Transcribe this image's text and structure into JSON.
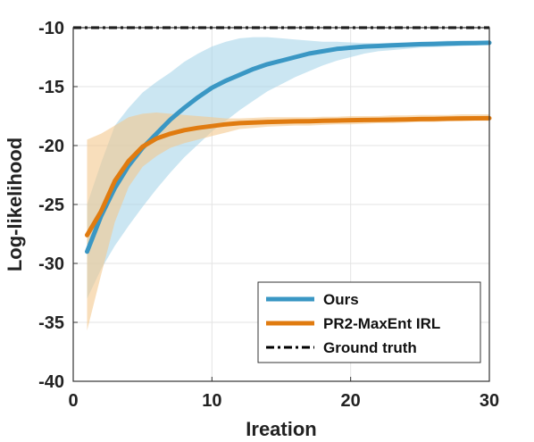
{
  "chart_data": {
    "type": "line",
    "xlabel": "Ireation",
    "ylabel": "Log-likelihood",
    "xlim": [
      0,
      30
    ],
    "ylim": [
      -40,
      -10
    ],
    "xticks": [
      "0",
      "10",
      "20",
      "30"
    ],
    "yticks": [
      "-10",
      "-15",
      "-20",
      "-25",
      "-30",
      "-35",
      "-40"
    ],
    "grid": true,
    "legend_position": "bottom-right",
    "series": [
      {
        "name": "Ours",
        "color": "#3a97c4",
        "band_color": "#a9d6ea",
        "x": [
          1,
          2,
          3,
          4,
          5,
          6,
          7,
          8,
          9,
          10,
          11,
          12,
          13,
          14,
          15,
          16,
          17,
          18,
          19,
          20,
          21,
          22,
          23,
          24,
          25,
          26,
          27,
          28,
          29,
          30
        ],
        "y": [
          -29.0,
          -26.0,
          -23.6,
          -21.7,
          -20.2,
          -19.0,
          -17.8,
          -16.8,
          -15.9,
          -15.1,
          -14.5,
          -14.0,
          -13.5,
          -13.1,
          -12.8,
          -12.5,
          -12.2,
          -12.0,
          -11.8,
          -11.7,
          -11.6,
          -11.55,
          -11.5,
          -11.45,
          -11.4,
          -11.38,
          -11.35,
          -11.32,
          -11.3,
          -11.28
        ],
        "lower": [
          -33.0,
          -30.5,
          -28.5,
          -26.8,
          -25.2,
          -23.7,
          -22.3,
          -21.0,
          -19.9,
          -18.8,
          -17.9,
          -17.0,
          -16.2,
          -15.4,
          -14.8,
          -14.2,
          -13.7,
          -13.2,
          -12.8,
          -12.5,
          -12.2,
          -12.0,
          -11.9,
          -11.8,
          -11.7,
          -11.65,
          -11.6,
          -11.55,
          -11.5,
          -11.45
        ],
        "upper": [
          -25.0,
          -21.5,
          -18.3,
          -16.8,
          -15.5,
          -14.6,
          -13.8,
          -12.9,
          -12.2,
          -11.6,
          -11.2,
          -10.9,
          -10.8,
          -10.8,
          -10.9,
          -11.0,
          -11.1,
          -11.2,
          -11.2,
          -11.25,
          -11.3,
          -11.3,
          -11.28,
          -11.25,
          -11.2,
          -11.15,
          -11.1,
          -11.1,
          -11.1,
          -11.1
        ]
      },
      {
        "name": "PR2-MaxEnt IRL",
        "color": "#e07b10",
        "band_color": "#f3c88e",
        "x": [
          1,
          2,
          3,
          4,
          5,
          6,
          7,
          8,
          9,
          10,
          11,
          12,
          13,
          14,
          15,
          16,
          17,
          18,
          19,
          20,
          21,
          22,
          23,
          24,
          25,
          26,
          27,
          28,
          29,
          30
        ],
        "y": [
          -27.6,
          -25.6,
          -23.0,
          -21.3,
          -20.1,
          -19.4,
          -19.0,
          -18.7,
          -18.5,
          -18.35,
          -18.2,
          -18.1,
          -18.05,
          -18.0,
          -17.97,
          -17.95,
          -17.93,
          -17.9,
          -17.88,
          -17.85,
          -17.83,
          -17.82,
          -17.8,
          -17.78,
          -17.76,
          -17.74,
          -17.72,
          -17.7,
          -17.69,
          -17.68
        ],
        "lower": [
          -35.7,
          -31.0,
          -26.5,
          -23.5,
          -21.8,
          -20.9,
          -20.2,
          -19.8,
          -19.5,
          -19.2,
          -18.9,
          -18.6,
          -18.5,
          -18.4,
          -18.35,
          -18.3,
          -18.3,
          -18.25,
          -18.2,
          -18.2,
          -18.15,
          -18.1,
          -18.1,
          -18.05,
          -18.0,
          -18.0,
          -17.95,
          -17.95,
          -17.9,
          -17.9
        ],
        "upper": [
          -19.5,
          -19.0,
          -18.3,
          -17.6,
          -17.3,
          -17.2,
          -17.3,
          -17.4,
          -17.5,
          -17.6,
          -17.7,
          -17.7,
          -17.65,
          -17.6,
          -17.6,
          -17.6,
          -17.6,
          -17.55,
          -17.55,
          -17.5,
          -17.5,
          -17.5,
          -17.45,
          -17.45,
          -17.4,
          -17.4,
          -17.4,
          -17.35,
          -17.35,
          -17.35
        ]
      },
      {
        "name": "Ground truth",
        "color": "#000000",
        "style": "dash-dot",
        "x": [
          0,
          30
        ],
        "y": [
          -10,
          -10
        ]
      }
    ]
  }
}
